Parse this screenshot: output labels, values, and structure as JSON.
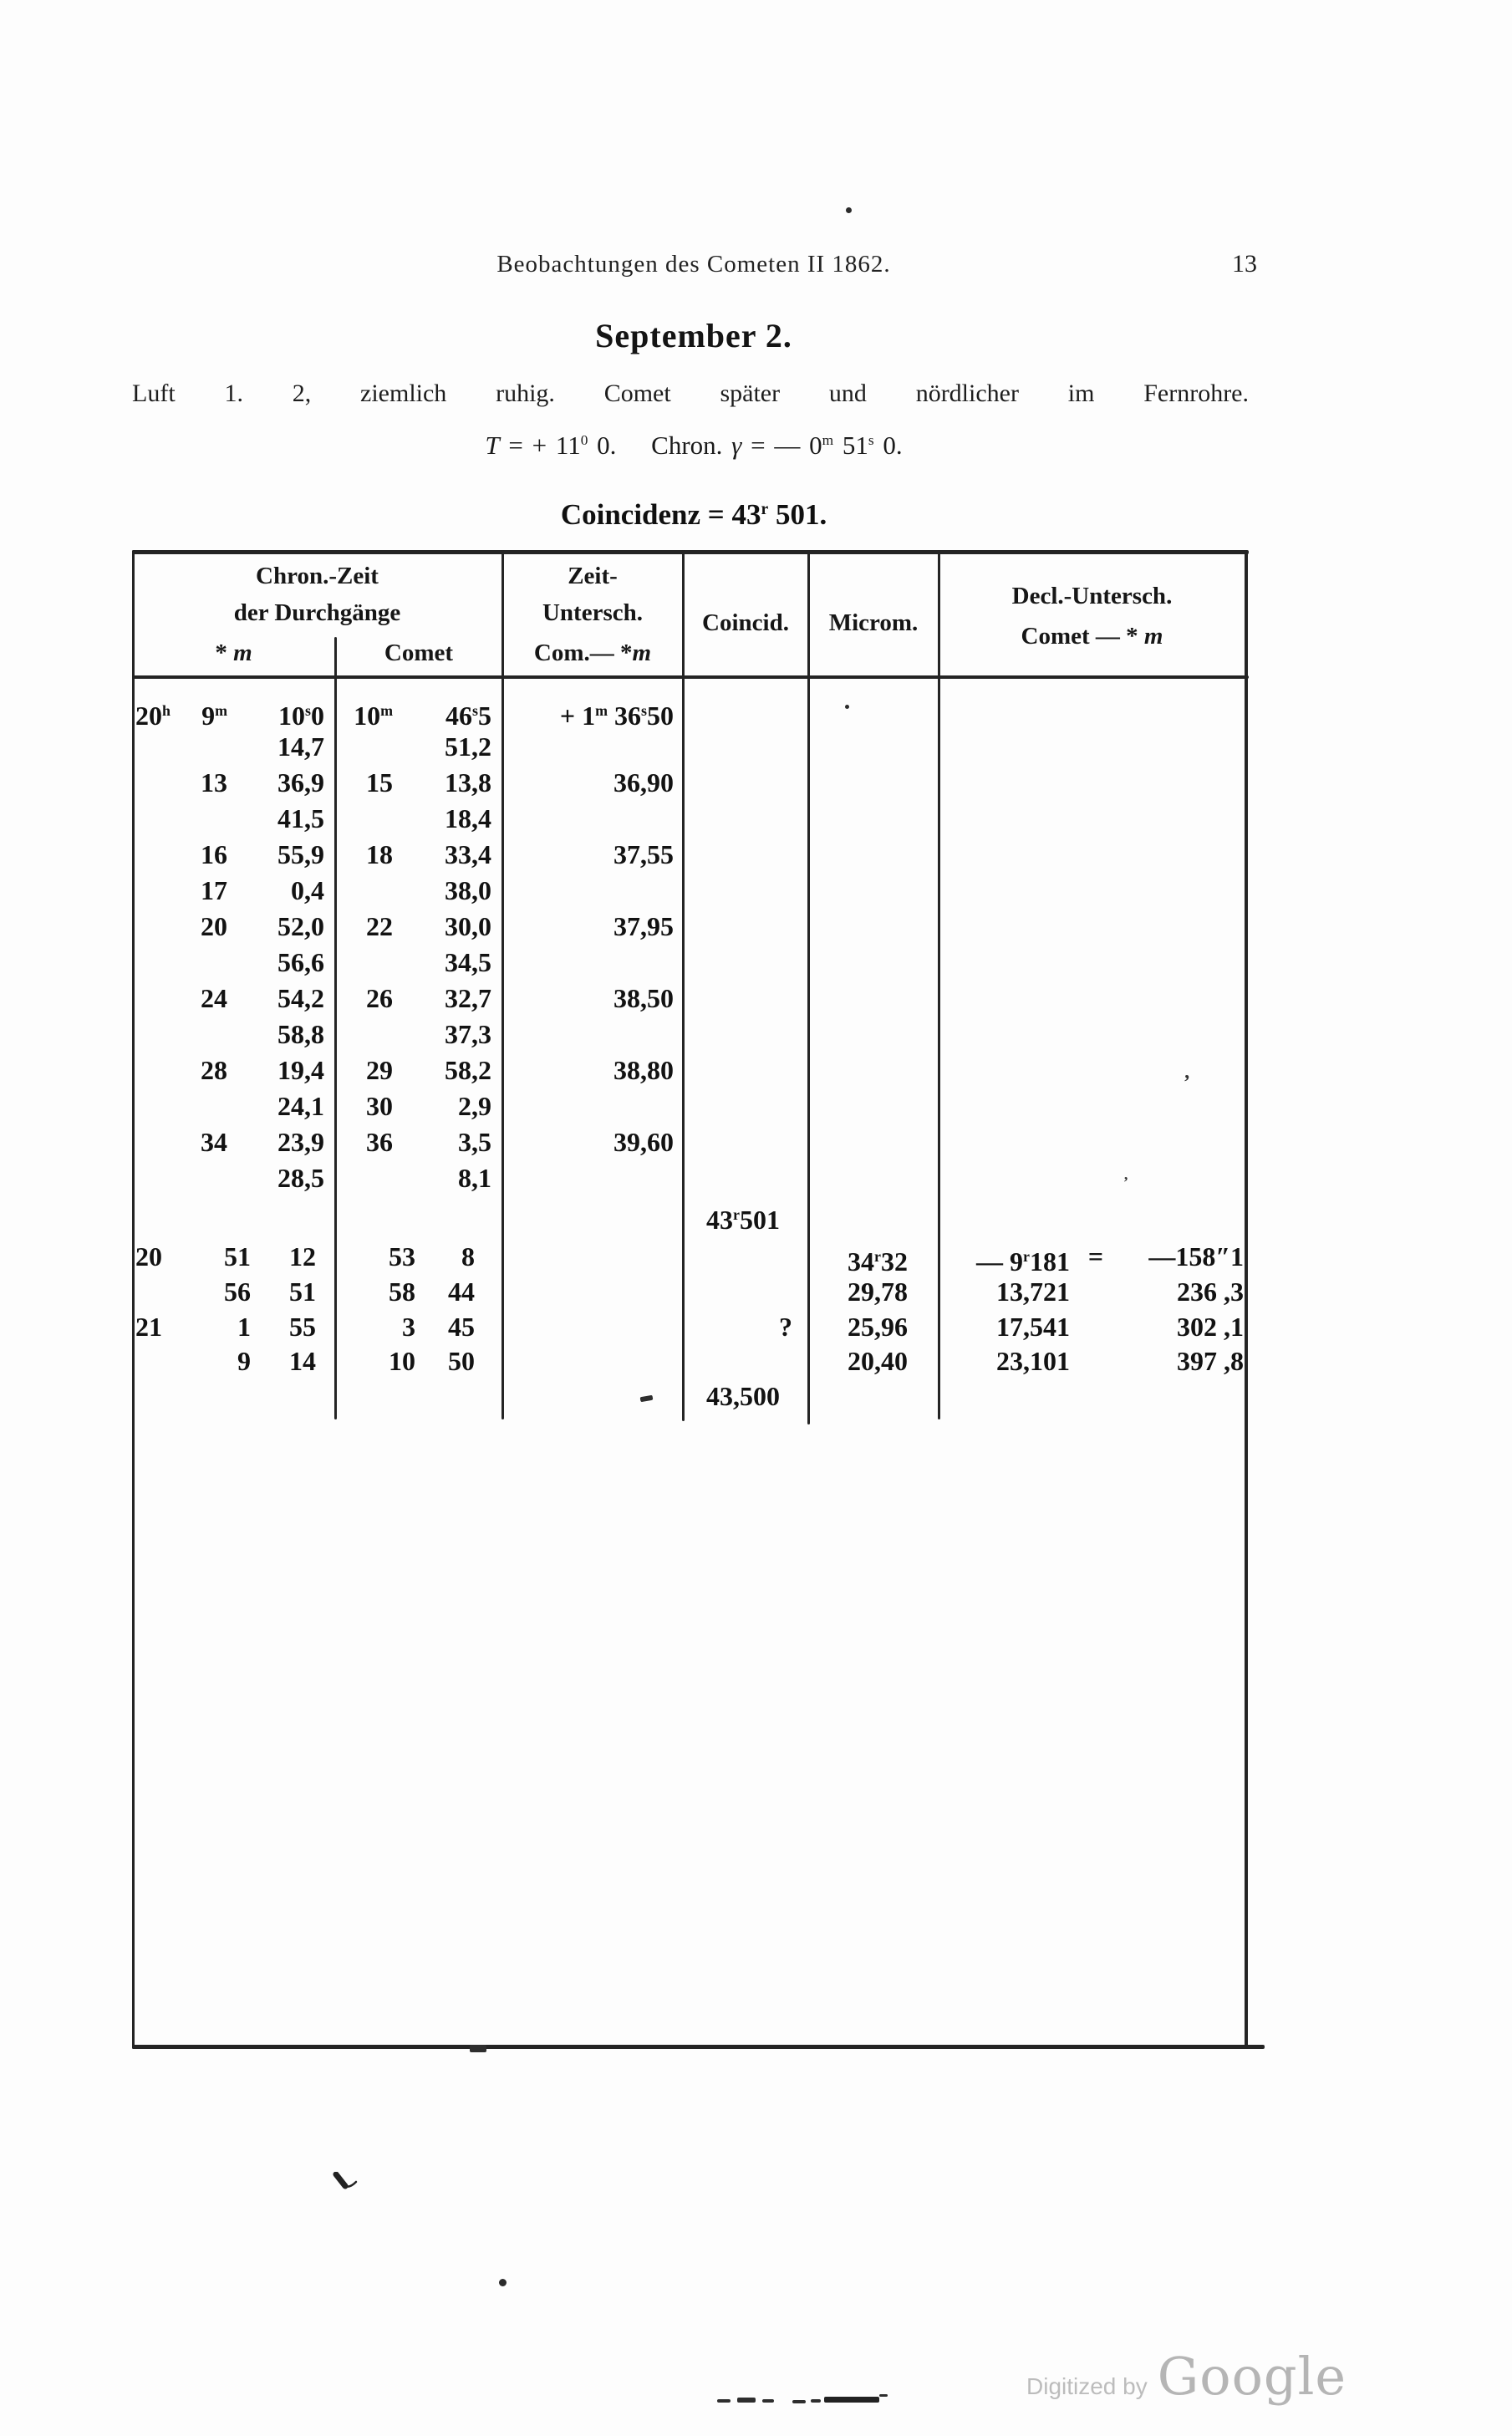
{
  "header": {
    "running_title": "Beobachtungen des Cometen II 1862.",
    "page_number": "13"
  },
  "section_title": "September 2.",
  "observation_note": "Luft 1. 2, ziemlich ruhig. Comet später und nördlicher im Fernrohre.",
  "parameters_line": "~T~ = + 11^0^ 0.  Chron. ~γ~ = — 0^m^ 51^s^ 0.",
  "coincidenz_line": "Coincidenz = 43^r^ 501.",
  "table": {
    "headers": {
      "chron_line1": "Chron.-Zeit",
      "chron_line2": "der Durchgänge",
      "chron_sub_star": "* ~m~",
      "chron_sub_comet": "Comet",
      "zeit_line1": "Zeit-",
      "zeit_line2": "Untersch.",
      "zeit_line3": "Com.— *~m~",
      "coincid": "Coincid.",
      "microm": "Microm.",
      "decl_line1": "Decl.-Untersch.",
      "decl_line2": "Comet — * ~m~"
    },
    "rows": [
      {
        "h": "20^h^",
        "m": "9^m^",
        "s": "10^s^0",
        "cm": "10^m^",
        "cs": "46^s^5",
        "z": "+ 1^m^ 36^s^50"
      },
      {
        "s": "14,7",
        "cs": "51,2"
      },
      {
        "m": "13",
        "s": "36,9",
        "cm": "15",
        "cs": "13,8",
        "z": "36,90"
      },
      {
        "s": "41,5",
        "cs": "18,4"
      },
      {
        "m": "16",
        "s": "55,9",
        "cm": "18",
        "cs": "33,4",
        "z": "37,55"
      },
      {
        "m": "17",
        "s": "0,4",
        "cs": "38,0"
      },
      {
        "m": "20",
        "s": "52,0",
        "cm": "22",
        "cs": "30,0",
        "z": "37,95"
      },
      {
        "s": "56,6",
        "cs": "34,5"
      },
      {
        "m": "24",
        "s": "54,2",
        "cm": "26",
        "cs": "32,7",
        "z": "38,50"
      },
      {
        "s": "58,8",
        "cs": "37,3"
      },
      {
        "m": "28",
        "s": "19,4",
        "cm": "29",
        "cs": "58,2",
        "z": "38,80"
      },
      {
        "s": "24,1",
        "cm": "30",
        "cs": "2,9"
      },
      {
        "m": "34",
        "s": "23,9",
        "cm": "36",
        "cs": "3,5",
        "z": "39,60"
      },
      {
        "s": "28,5",
        "cs": "8,1"
      },
      {
        "co": "43^r^501"
      },
      {
        "h": "20",
        "m": "51",
        "s": "12",
        "cm": "53",
        "cs": "8",
        "mi": "34^r^32",
        "da": "— 9^r^181",
        "deq": "=",
        "db": "—158″1"
      },
      {
        "m": "56",
        "s": "51",
        "cm": "58",
        "cs": "44",
        "mi": "29,78",
        "da": "13,721",
        "db": "236 ,3"
      },
      {
        "h": "21",
        "m": "1",
        "s": "55",
        "cm": "3",
        "cs": "45",
        "q": "?",
        "mi": "25,96",
        "da": "17,541",
        "db": "302 ,1"
      },
      {
        "m": "9",
        "s": "14",
        "cm": "10",
        "cs": "50",
        "mi": "20,40",
        "da": "23,101",
        "db": "397 ,8"
      },
      {
        "co": "43,500"
      }
    ]
  },
  "watermark": {
    "digitized_by": "Digitized by",
    "brand": "Google"
  }
}
